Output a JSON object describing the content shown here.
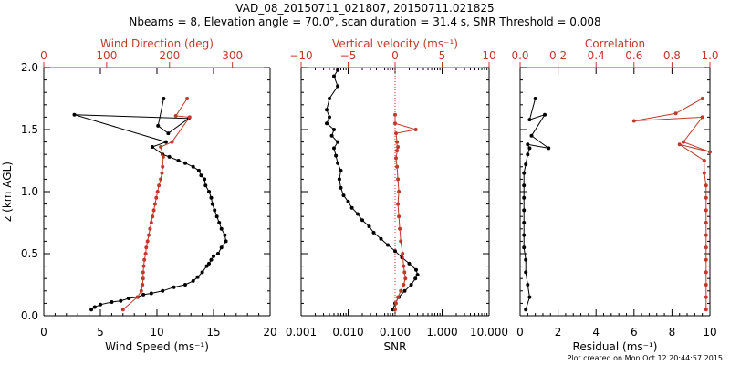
{
  "title_line1": "VAD_08_20150711_021807, 20150711.021825",
  "title_line2": "Nbeams = 8, Elevation angle = 70.0°, scan duration = 31.4 s, SNR Threshold = 0.008",
  "footer": "Plot created on Mon Oct 12 20:44:57 2015",
  "colors": {
    "black": "#000000",
    "red": "#c0392b"
  },
  "chart_data": [
    {
      "type": "line",
      "panel": "wind",
      "ylabel": "z (km AGL)",
      "ylim": [
        0,
        2.0
      ],
      "y_ticks": [
        "0.0",
        "0.5",
        "1.0",
        "1.5",
        "2.0"
      ],
      "xlabel": "Wind Speed (ms⁻¹)",
      "xlim": [
        0,
        20
      ],
      "x_ticks": [
        "0",
        "5",
        "10",
        "15",
        "20"
      ],
      "top_xlabel": "Wind Direction (deg)",
      "top_xlim": [
        0,
        360
      ],
      "top_ticks": [
        "0",
        "100",
        "200",
        "300"
      ],
      "series": [
        {
          "role": "speed",
          "color": "black",
          "axis": "bottom",
          "x": [
            4.2,
            4.5,
            5.0,
            6.0,
            6.8,
            7.5,
            8.3,
            8.8,
            9.5,
            10.5,
            11.5,
            12.5,
            13.2,
            13.6,
            14.0,
            14.4,
            14.6,
            14.8,
            15.0,
            15.4,
            15.7,
            16.1,
            16.0,
            15.7,
            15.5,
            15.3,
            15.1,
            14.9,
            14.8,
            14.6,
            14.3,
            14.2,
            13.9,
            13.7,
            13.2,
            12.5,
            11.9,
            11.1,
            10.5,
            9.6,
            10.8,
            2.7,
            12.8,
            11.0,
            10.1,
            10.6
          ],
          "y": [
            0.05,
            0.07,
            0.09,
            0.11,
            0.12,
            0.14,
            0.15,
            0.17,
            0.18,
            0.2,
            0.23,
            0.25,
            0.28,
            0.31,
            0.35,
            0.4,
            0.42,
            0.45,
            0.48,
            0.5,
            0.55,
            0.6,
            0.65,
            0.7,
            0.75,
            0.8,
            0.85,
            0.9,
            0.95,
            1.0,
            1.05,
            1.1,
            1.13,
            1.17,
            1.2,
            1.23,
            1.25,
            1.28,
            1.3,
            1.36,
            1.4,
            1.62,
            1.59,
            1.47,
            1.53,
            1.75
          ]
        },
        {
          "role": "direction",
          "color": "red",
          "axis": "top",
          "x": [
            126,
            149,
            155,
            157,
            158,
            158,
            159,
            160,
            162,
            163,
            165,
            167,
            169,
            171,
            173,
            175,
            177,
            179,
            181,
            183,
            186,
            188,
            189,
            190,
            186,
            204,
            232,
            210,
            228
          ],
          "y": [
            0.05,
            0.15,
            0.2,
            0.25,
            0.3,
            0.35,
            0.4,
            0.45,
            0.5,
            0.55,
            0.6,
            0.65,
            0.7,
            0.75,
            0.8,
            0.85,
            0.9,
            0.95,
            1.0,
            1.05,
            1.1,
            1.15,
            1.2,
            1.28,
            1.36,
            1.4,
            1.6,
            1.61,
            1.75
          ]
        }
      ]
    },
    {
      "type": "line",
      "panel": "vertical",
      "xlabel": "SNR",
      "xscale": "log",
      "xlim": [
        0.001,
        10
      ],
      "x_ticks": [
        "0.001",
        "0.010",
        "0.100",
        "1.000",
        "10.000"
      ],
      "top_xlabel": "Vertical velocity (ms⁻¹)",
      "top_xlim": [
        -10,
        10
      ],
      "top_ticks": [
        "−10",
        "−5",
        "0",
        "5",
        "10"
      ],
      "reference_line": {
        "axis": "top",
        "x": 0,
        "style": "dotted",
        "color": "red"
      },
      "series": [
        {
          "role": "snr",
          "color": "black",
          "axis": "bottom",
          "x": [
            0.09,
            0.1,
            0.12,
            0.16,
            0.22,
            0.27,
            0.3,
            0.28,
            0.2,
            0.14,
            0.1,
            0.07,
            0.05,
            0.035,
            0.028,
            0.02,
            0.016,
            0.012,
            0.01,
            0.008,
            0.007,
            0.0065,
            0.007,
            0.006,
            0.0055,
            0.005,
            0.006,
            0.0045,
            0.005,
            0.0035,
            0.004,
            0.0035,
            0.004,
            0.006,
            0.005,
            0.006
          ],
          "y": [
            0.05,
            0.1,
            0.15,
            0.2,
            0.25,
            0.3,
            0.33,
            0.37,
            0.42,
            0.47,
            0.52,
            0.57,
            0.62,
            0.67,
            0.72,
            0.77,
            0.82,
            0.87,
            0.92,
            0.97,
            1.03,
            1.1,
            1.17,
            1.23,
            1.29,
            1.35,
            1.4,
            1.45,
            1.5,
            1.55,
            1.6,
            1.66,
            1.75,
            1.85,
            1.93,
            1.98
          ]
        },
        {
          "role": "vertical_velocity",
          "color": "red",
          "axis": "top",
          "x": [
            0.0,
            0.1,
            0.3,
            0.6,
            0.9,
            1.1,
            1.0,
            0.9,
            0.8,
            0.6,
            0.5,
            0.4,
            0.3,
            0.4,
            0.3,
            0.2,
            0.1,
            0.3,
            0.2,
            0.2,
            0.1,
            2.2,
            0.0,
            0.0
          ],
          "y": [
            0.05,
            0.1,
            0.15,
            0.2,
            0.25,
            0.3,
            0.35,
            0.4,
            0.5,
            0.6,
            0.7,
            0.8,
            0.9,
            1.0,
            1.1,
            1.2,
            1.27,
            1.36,
            1.33,
            1.4,
            1.47,
            1.5,
            1.55,
            1.62
          ]
        }
      ]
    },
    {
      "type": "line",
      "panel": "residual",
      "xlabel": "Residual (ms⁻¹)",
      "xlim": [
        0,
        10
      ],
      "x_ticks": [
        "0",
        "2",
        "4",
        "6",
        "8",
        "10"
      ],
      "top_xlabel": "Correlation",
      "top_xlim": [
        0,
        1.0
      ],
      "top_ticks": [
        "0.0",
        "0.2",
        "0.4",
        "0.6",
        "0.8",
        "1.0"
      ],
      "series": [
        {
          "role": "residual",
          "color": "black",
          "axis": "bottom",
          "x": [
            0.3,
            0.5,
            0.4,
            0.3,
            0.3,
            0.2,
            0.2,
            0.2,
            0.2,
            0.2,
            0.2,
            0.2,
            0.3,
            0.4,
            0.5,
            0.4,
            1.5,
            0.6,
            1.3,
            0.5,
            0.8
          ],
          "y": [
            0.05,
            0.15,
            0.25,
            0.35,
            0.45,
            0.55,
            0.65,
            0.75,
            0.85,
            0.95,
            1.05,
            1.15,
            1.22,
            1.3,
            1.35,
            1.38,
            1.35,
            1.45,
            1.62,
            1.58,
            1.75
          ]
        },
        {
          "role": "correlation",
          "color": "red",
          "axis": "top",
          "x": [
            0.98,
            0.98,
            0.98,
            0.98,
            0.98,
            0.98,
            0.98,
            0.98,
            0.98,
            0.98,
            0.98,
            0.97,
            0.97,
            0.84,
            1.0,
            0.86,
            0.96,
            0.6,
            0.82,
            0.96
          ],
          "y": [
            0.05,
            0.15,
            0.25,
            0.35,
            0.45,
            0.55,
            0.65,
            0.75,
            0.85,
            0.95,
            1.05,
            1.15,
            1.25,
            1.38,
            1.32,
            1.4,
            1.6,
            1.57,
            1.63,
            1.75
          ]
        }
      ]
    }
  ]
}
